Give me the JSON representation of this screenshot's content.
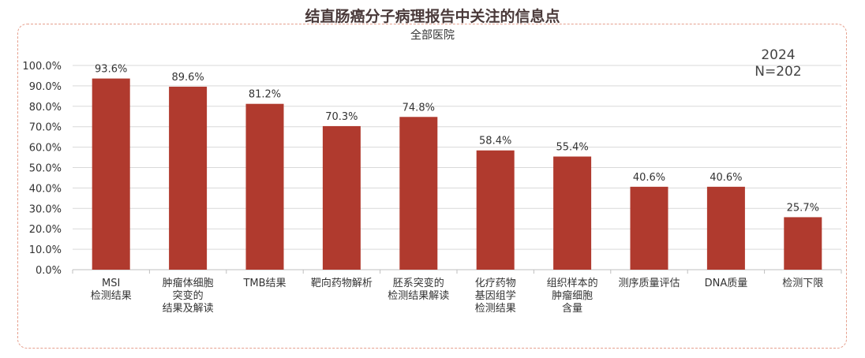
{
  "title": "结直肠癌分子病理报告中关注的信息点",
  "subtitle": "全部医院",
  "note": {
    "year": "2024",
    "n": "N=202"
  },
  "colors": {
    "bar": "#b03a2e",
    "grid": "#d9d9d9",
    "frame": "#e6a08e"
  },
  "chart_data": {
    "type": "bar",
    "title": "结直肠癌分子病理报告中关注的信息点",
    "subtitle": "全部医院",
    "categories": [
      [
        "MSI",
        "检测结果"
      ],
      [
        "肿瘤体细胞",
        "突变的",
        "结果及解读"
      ],
      [
        "TMB结果"
      ],
      [
        "靶向药物解析"
      ],
      [
        "胚系突变的",
        "检测结果解读"
      ],
      [
        "化疗药物",
        "基因组学",
        "检测结果"
      ],
      [
        "组织样本的",
        "肿瘤细胞",
        "含量"
      ],
      [
        "测序质量评估"
      ],
      [
        "DNA质量"
      ],
      [
        "检测下限"
      ]
    ],
    "values": [
      93.6,
      89.6,
      81.2,
      70.3,
      74.8,
      58.4,
      55.4,
      40.6,
      40.6,
      25.7
    ],
    "value_labels": [
      "93.6%",
      "89.6%",
      "81.2%",
      "70.3%",
      "74.8%",
      "58.4%",
      "55.4%",
      "40.6%",
      "40.6%",
      "25.7%"
    ],
    "yticks": [
      "0.0%",
      "10.0%",
      "20.0%",
      "30.0%",
      "40.0%",
      "50.0%",
      "60.0%",
      "70.0%",
      "80.0%",
      "90.0%",
      "100.0%"
    ],
    "ylim": [
      0,
      100
    ],
    "grid": true,
    "legend": "none"
  }
}
